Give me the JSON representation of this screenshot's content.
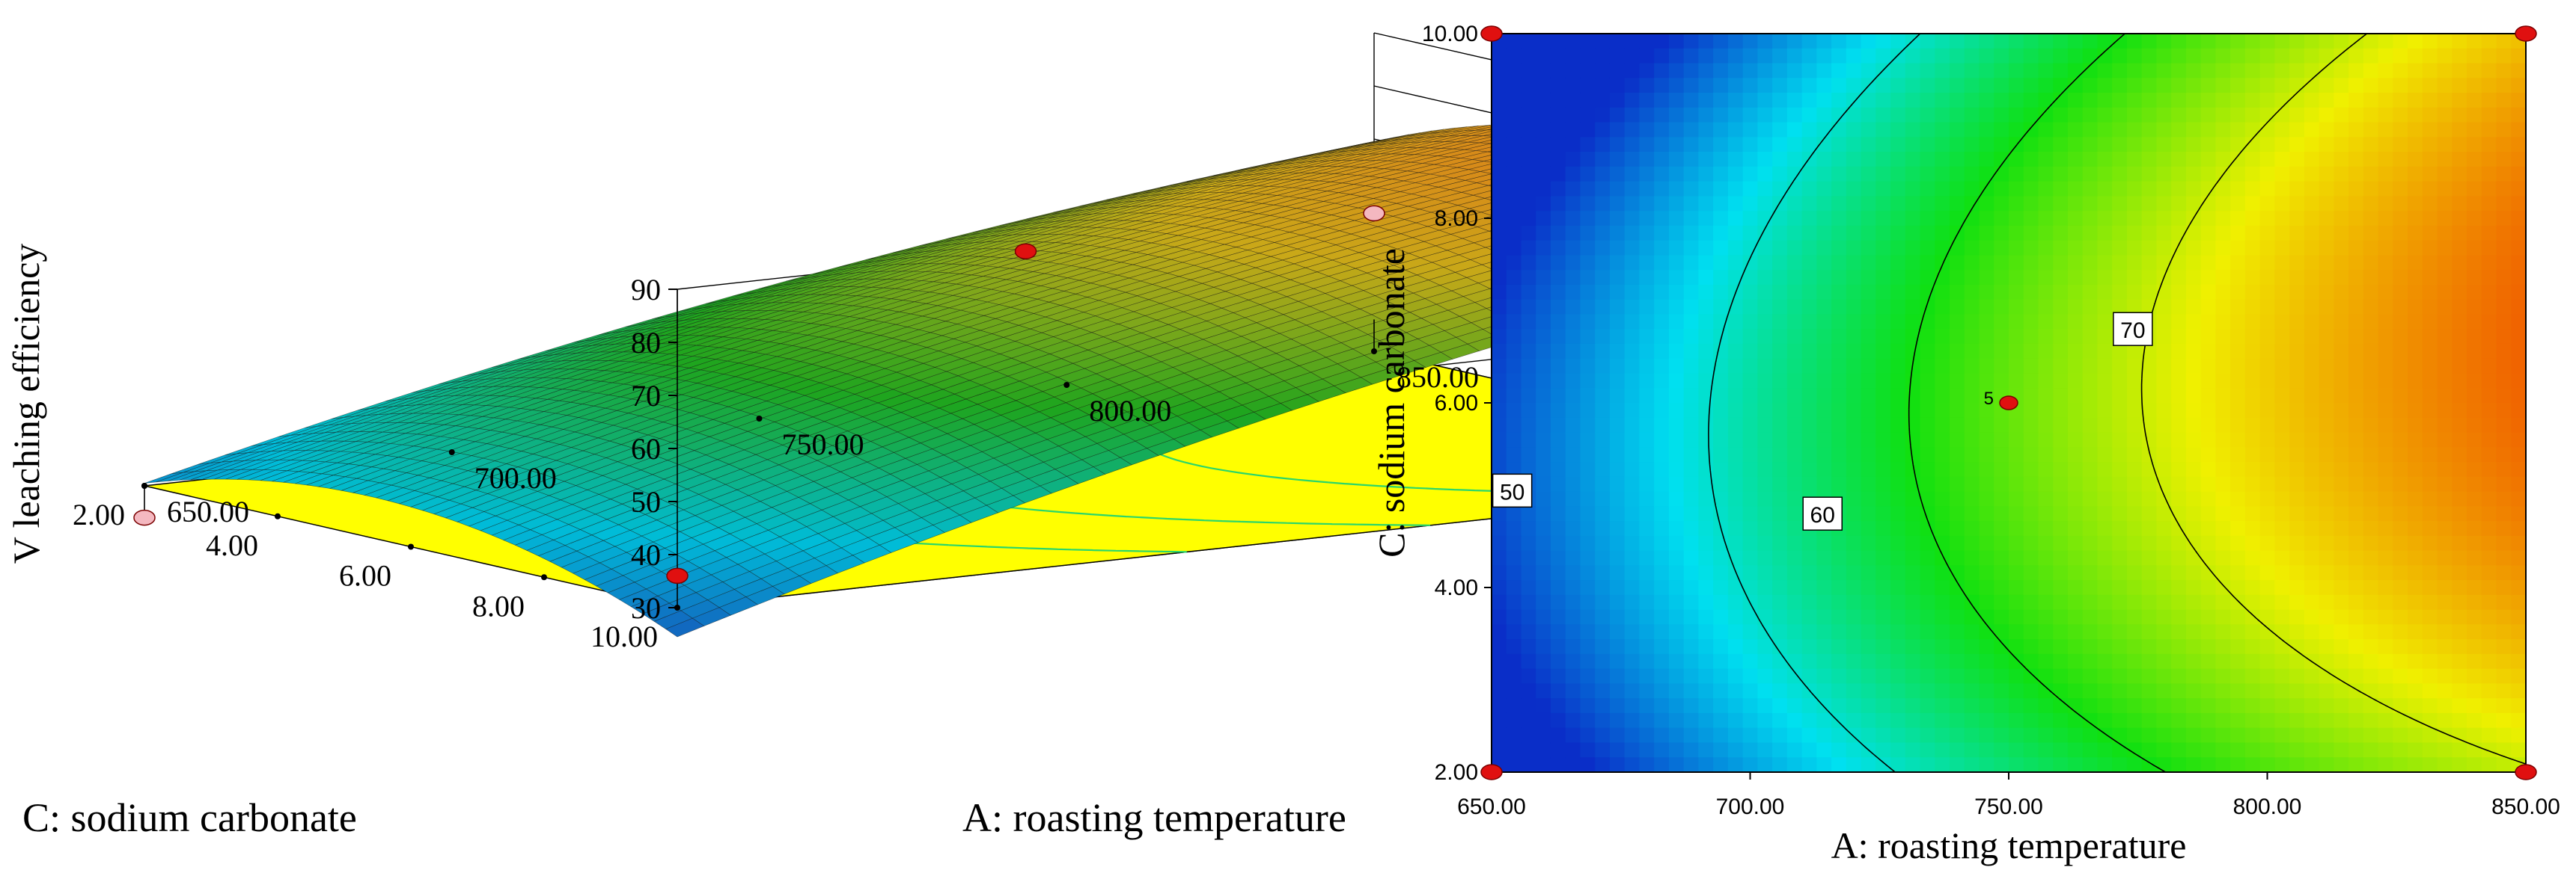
{
  "figure_title": "",
  "chart_data": [
    {
      "type": "surface3d",
      "title": "",
      "zlabel": "V leaching efficiency",
      "xlabel": "A: roasting temperature",
      "ylabel": "C: sodium carbonate",
      "x_ticks": [
        "650.00",
        "700.00",
        "750.00",
        "800.00",
        "850.00"
      ],
      "y_ticks": [
        "2.00",
        "4.00",
        "6.00",
        "8.00",
        "10.00"
      ],
      "z_ticks": [
        "30",
        "40",
        "50",
        "60",
        "70",
        "80",
        "90"
      ],
      "xlim": [
        650,
        850
      ],
      "ylim": [
        2,
        10
      ],
      "zlim": [
        30,
        90
      ],
      "floor_color": "#ffff00",
      "surface_colors": [
        "#1a3fb4",
        "#00bcd8",
        "#1ea51e",
        "#c9a818",
        "#e86a1a"
      ],
      "design_points": [
        {
          "x": 650,
          "y": 10,
          "z": 36
        },
        {
          "x": 650,
          "y": 2,
          "z": 24
        },
        {
          "x": 850,
          "y": 10,
          "z": 84
        },
        {
          "x": 850,
          "y": 2,
          "z": 56
        },
        {
          "x": 750,
          "y": 6,
          "z": 73
        }
      ]
    },
    {
      "type": "contour",
      "title": "",
      "xlabel": "A: roasting temperature",
      "ylabel": "C: sodium carbonate",
      "x_ticks": [
        "650.00",
        "700.00",
        "750.00",
        "800.00",
        "850.00"
      ],
      "y_ticks": [
        "2.00",
        "4.00",
        "6.00",
        "8.00",
        "10.00"
      ],
      "xlim": [
        650,
        850
      ],
      "ylim": [
        2,
        10
      ],
      "contour_labels": [
        {
          "level": "50",
          "x": 654,
          "y": 5.05
        },
        {
          "level": "60",
          "x": 714,
          "y": 4.8
        },
        {
          "level": "70",
          "x": 774,
          "y": 6.8
        }
      ],
      "center_point": {
        "x": 750,
        "y": 6,
        "label": "5"
      },
      "corner_points": [
        {
          "x": 650,
          "y": 10
        },
        {
          "x": 850,
          "y": 10
        },
        {
          "x": 650,
          "y": 2
        },
        {
          "x": 850,
          "y": 2
        }
      ],
      "color_scale": [
        "#0a2ec8",
        "#00e0f0",
        "#10e010",
        "#f0f000",
        "#f05000"
      ],
      "z_range": [
        36,
        84
      ]
    }
  ]
}
